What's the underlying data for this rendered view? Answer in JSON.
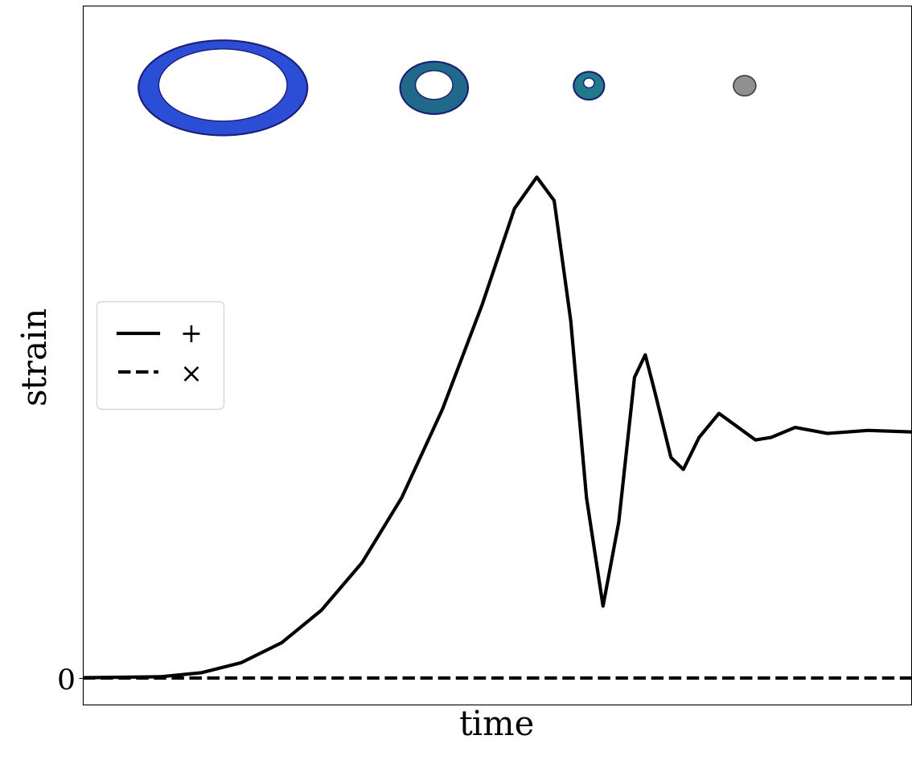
{
  "chart_data": {
    "type": "line",
    "x_label": "time",
    "y_label": "strain",
    "x": [
      0,
      9.4,
      14.3,
      19.1,
      24.0,
      28.8,
      33.7,
      38.5,
      43.4,
      48.2,
      52.1,
      54.8,
      56.9,
      58.9,
      60.8,
      62.8,
      64.7,
      66.6,
      67.9,
      69.1,
      71.0,
      72.5,
      74.4,
      76.8,
      78.8,
      81.2,
      83.1,
      86.0,
      89.9,
      94.8,
      100
    ],
    "series": [
      {
        "name": "+",
        "color": "#000000",
        "line_style": "solid",
        "values": [
          0,
          0.002,
          0.01,
          0.03,
          0.07,
          0.135,
          0.23,
          0.36,
          0.536,
          0.745,
          0.937,
          1.0,
          0.953,
          0.713,
          0.36,
          0.143,
          0.311,
          0.6,
          0.645,
          0.568,
          0.44,
          0.416,
          0.48,
          0.528,
          0.504,
          0.475,
          0.48,
          0.5,
          0.488,
          0.494,
          0.491
        ]
      },
      {
        "name": "×",
        "color": "#000000",
        "line_style": "dashed",
        "values": [
          0,
          0,
          0,
          0,
          0,
          0,
          0,
          0,
          0,
          0,
          0,
          0,
          0,
          0,
          0,
          0,
          0,
          0,
          0,
          0,
          0,
          0,
          0,
          0,
          0,
          0,
          0,
          0,
          0,
          0,
          0
        ]
      }
    ],
    "xlim": [
      0,
      100
    ],
    "ylim": [
      -0.053,
      1.343
    ],
    "xticks": [],
    "yticks": [
      0
    ],
    "tick_labels": "y",
    "legend": "center left",
    "grid": false
  }
}
